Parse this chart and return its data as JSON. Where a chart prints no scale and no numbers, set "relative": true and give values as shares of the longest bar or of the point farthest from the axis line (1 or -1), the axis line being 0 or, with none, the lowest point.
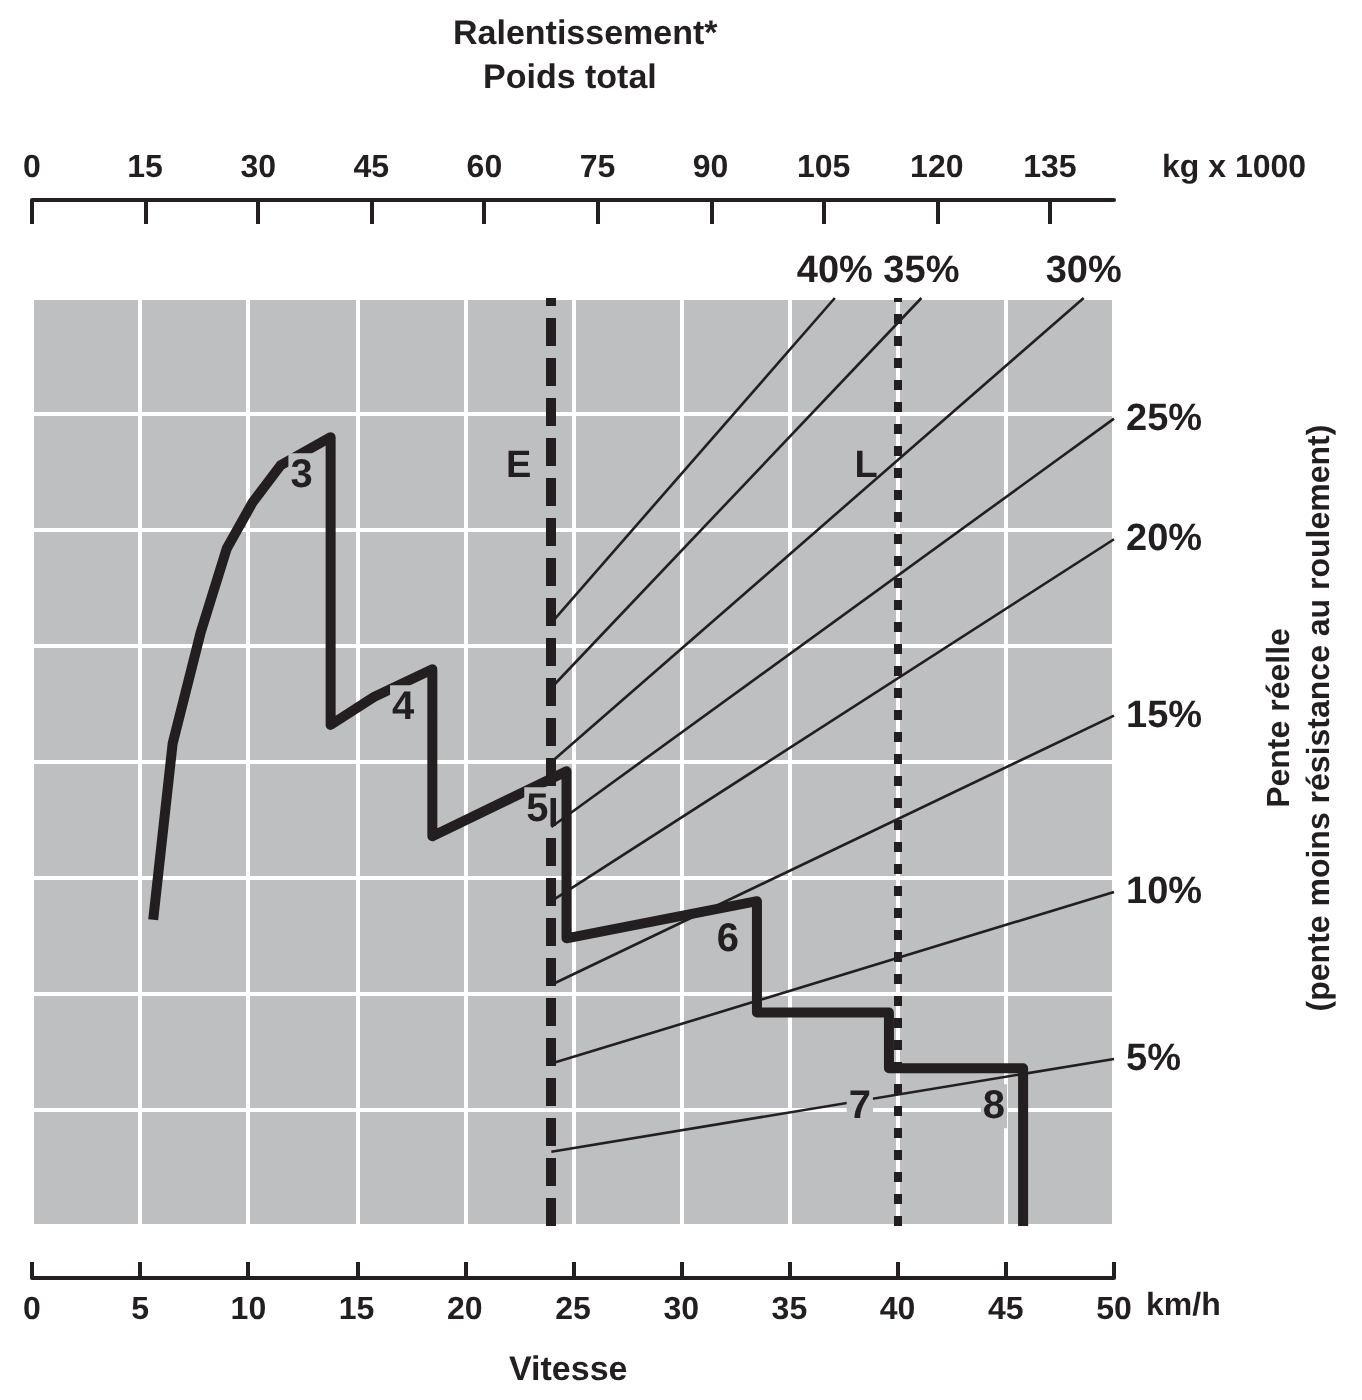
{
  "chart_data": {
    "type": "line",
    "title": "Ralentissement*",
    "x2label": "Poids total",
    "xlabel": "Vitesse",
    "ylabel": "Pente réelle\n(pente moins résistance au roulement)",
    "xlim": [
      0,
      50
    ],
    "xticks": [
      0,
      5,
      10,
      15,
      20,
      25,
      30,
      35,
      40,
      45,
      50
    ],
    "x2lim": [
      0,
      143.5
    ],
    "x2ticks": [
      0,
      15,
      30,
      45,
      60,
      75,
      90,
      105,
      120,
      135
    ],
    "relative": true,
    "grid": true,
    "marker": "none",
    "line_style": "solid",
    "annotations": [
      "km/h",
      "kg x 1000",
      {
        "text": "3",
        "x": 13.8,
        "y": 0.85
      },
      {
        "text": "4",
        "x": 18.5,
        "y": 0.6
      },
      {
        "text": "5",
        "x": 24.7,
        "y": 0.49
      },
      {
        "text": "6",
        "x": 33.5,
        "y": 0.35
      },
      {
        "text": "7",
        "x": 39.6,
        "y": 0.17
      },
      {
        "text": "8",
        "x": 45.8,
        "y": 0.17
      }
    ],
    "ref_lines": [
      {
        "axis": "x",
        "value": 24,
        "label": "E",
        "line_style": "dashed",
        "color": "#231f20"
      },
      {
        "axis": "x",
        "value": 40,
        "label": "L",
        "line_style": "dotted",
        "color": "#231f20"
      }
    ],
    "series": [
      {
        "color": "#231f20",
        "x": [
          5.6,
          6.5,
          7.8,
          9.0,
          10.2,
          11.5,
          13.8,
          13.8,
          15.8,
          18.5,
          18.5,
          24.7,
          24.7,
          33.5,
          33.5,
          39.6,
          39.6,
          45.8,
          45.8
        ],
        "values": [
          0.33,
          0.52,
          0.64,
          0.73,
          0.78,
          0.82,
          0.85,
          0.54,
          0.57,
          0.6,
          0.42,
          0.49,
          0.31,
          0.35,
          0.23,
          0.23,
          0.17,
          0.17,
          0
        ]
      },
      {
        "name": "40%",
        "color": "#231f20",
        "x": [
          24,
          37.1
        ],
        "values": [
          0.65,
          1
        ]
      },
      {
        "name": "35%",
        "color": "#231f20",
        "x": [
          24,
          41.1
        ],
        "values": [
          0.58,
          1
        ]
      },
      {
        "name": "30%",
        "color": "#231f20",
        "x": [
          24,
          48.6
        ],
        "values": [
          0.5,
          1
        ]
      },
      {
        "name": "25%",
        "color": "#231f20",
        "x": [
          24,
          50
        ],
        "values": [
          0.43,
          0.87
        ]
      },
      {
        "name": "20%",
        "color": "#231f20",
        "x": [
          24,
          50
        ],
        "values": [
          0.35,
          0.74
        ]
      },
      {
        "name": "15%",
        "color": "#231f20",
        "x": [
          24,
          50
        ],
        "values": [
          0.26,
          0.55
        ]
      },
      {
        "name": "10%",
        "color": "#231f20",
        "x": [
          24,
          50
        ],
        "values": [
          0.175,
          0.36
        ]
      },
      {
        "name": "5%",
        "color": "#231f20",
        "x": [
          24,
          50
        ],
        "values": [
          0.08,
          0.18
        ]
      }
    ]
  }
}
